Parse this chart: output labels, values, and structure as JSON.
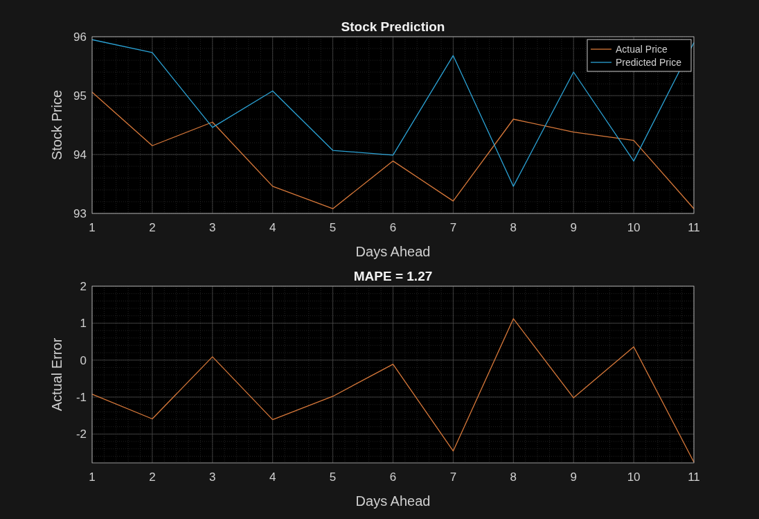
{
  "chart_data": [
    {
      "type": "line",
      "title": "Stock Prediction",
      "xlabel": "Days Ahead",
      "ylabel": "Stock Price",
      "x": [
        1,
        2,
        3,
        4,
        5,
        6,
        7,
        8,
        9,
        10,
        11
      ],
      "xlim": [
        1,
        11
      ],
      "xticks": [
        1,
        2,
        3,
        4,
        5,
        6,
        7,
        8,
        9,
        10,
        11
      ],
      "ylim": [
        93,
        96
      ],
      "yticks": [
        93,
        94,
        95,
        96
      ],
      "grid": true,
      "legend": "top right",
      "series": [
        {
          "name": "Actual Price",
          "color": "#d9793a",
          "values": [
            95.06,
            94.15,
            94.55,
            93.46,
            93.08,
            93.89,
            93.21,
            94.6,
            94.38,
            94.24,
            93.08
          ]
        },
        {
          "name": "Predicted Price",
          "color": "#2ba3d6",
          "values": [
            95.95,
            95.73,
            94.46,
            95.08,
            94.07,
            93.99,
            95.68,
            93.46,
            95.4,
            93.89,
            95.9
          ]
        }
      ]
    },
    {
      "type": "line",
      "title": "MAPE = 1.27",
      "xlabel": "Days Ahead",
      "ylabel": "Actual Error",
      "x": [
        1,
        2,
        3,
        4,
        5,
        6,
        7,
        8,
        9,
        10,
        11
      ],
      "xlim": [
        1,
        11
      ],
      "xticks": [
        1,
        2,
        3,
        4,
        5,
        6,
        7,
        8,
        9,
        10,
        11
      ],
      "ylim": [
        -2.78,
        2
      ],
      "yticks": [
        -2,
        -1,
        0,
        1,
        2
      ],
      "grid": true,
      "series": [
        {
          "color": "#d9793a",
          "values": [
            -0.92,
            -1.59,
            0.09,
            -1.61,
            -0.98,
            -0.11,
            -2.46,
            1.12,
            -1.02,
            0.36,
            -2.76
          ]
        }
      ]
    }
  ]
}
